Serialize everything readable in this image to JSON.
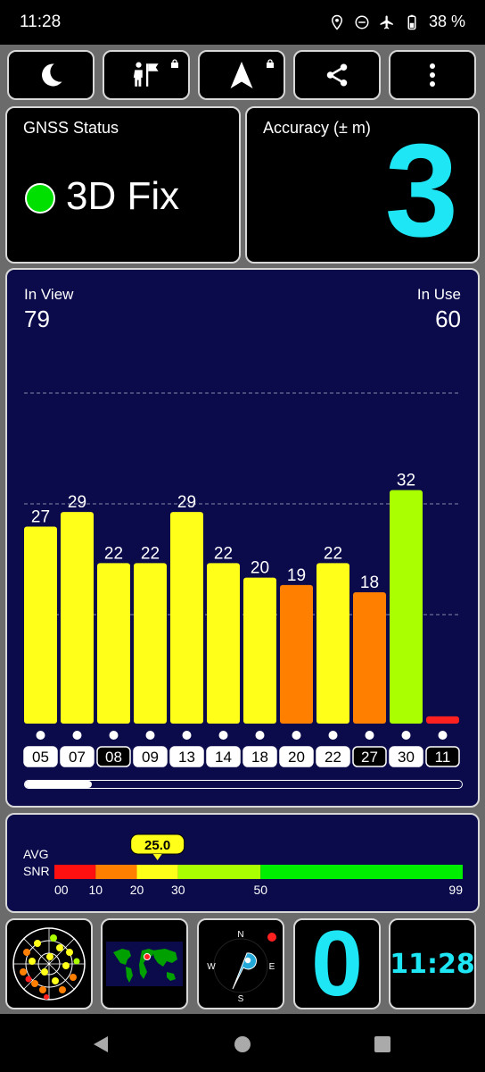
{
  "status_bar": {
    "time": "11:28",
    "battery": "38 %",
    "icons": [
      "location-icon",
      "dnd-icon",
      "airplane-icon",
      "battery-icon"
    ]
  },
  "toolbar": {
    "buttons": [
      {
        "name": "night-mode-button",
        "icon": "moon-icon",
        "locked": false
      },
      {
        "name": "guide-button",
        "icon": "person-flag-icon",
        "locked": true
      },
      {
        "name": "navigate-button",
        "icon": "navigation-arrow-icon",
        "locked": true
      },
      {
        "name": "share-button",
        "icon": "share-icon",
        "locked": false
      },
      {
        "name": "menu-button",
        "icon": "more-vertical-icon",
        "locked": false
      }
    ]
  },
  "gnss": {
    "title": "GNSS Status",
    "status": "3D Fix",
    "status_color": "#00e000"
  },
  "accuracy": {
    "title": "Accuracy (± m)",
    "value": "3",
    "value_color": "#1ee6f5"
  },
  "satellites": {
    "in_view_label": "In View",
    "in_view": "79",
    "in_use_label": "In Use",
    "in_use": "60"
  },
  "chart_data": {
    "type": "bar",
    "categories": [
      "05",
      "07",
      "08",
      "09",
      "13",
      "14",
      "18",
      "20",
      "22",
      "27",
      "30",
      "11"
    ],
    "values": [
      27,
      29,
      22,
      22,
      29,
      22,
      20,
      19,
      22,
      18,
      32,
      1
    ],
    "value_labels": [
      "27",
      "29",
      "22",
      "22",
      "29",
      "22",
      "20",
      "19",
      "22",
      "18",
      "32",
      ""
    ],
    "colors": [
      "#ffff1a",
      "#ffff1a",
      "#ffff1a",
      "#ffff1a",
      "#ffff1a",
      "#ffff1a",
      "#ffff1a",
      "#ff8000",
      "#ffff1a",
      "#ff8000",
      "#aaff00",
      "#ff2020"
    ],
    "in_use": [
      true,
      true,
      false,
      true,
      true,
      true,
      true,
      true,
      true,
      false,
      true,
      false
    ],
    "ylim": [
      0,
      60
    ]
  },
  "snr": {
    "label_avg": "AVG",
    "label_snr": "SNR",
    "average": "25.0",
    "average_value": 25,
    "scale_max": 99,
    "segments": [
      {
        "from": 0,
        "to": 10,
        "color": "#ff1010"
      },
      {
        "from": 10,
        "to": 20,
        "color": "#ff8000"
      },
      {
        "from": 20,
        "to": 30,
        "color": "#ffff1a"
      },
      {
        "from": 30,
        "to": 50,
        "color": "#aaff00"
      },
      {
        "from": 50,
        "to": 99,
        "color": "#00ee00"
      }
    ],
    "ticks": [
      "00",
      "10",
      "20",
      "30",
      "50",
      "99"
    ],
    "tick_values": [
      0,
      10,
      20,
      30,
      50,
      99
    ]
  },
  "bottom": {
    "zero_value": "0",
    "clock": "11:28",
    "compass": {
      "n": "N",
      "e": "E",
      "s": "S",
      "w": "W"
    }
  }
}
